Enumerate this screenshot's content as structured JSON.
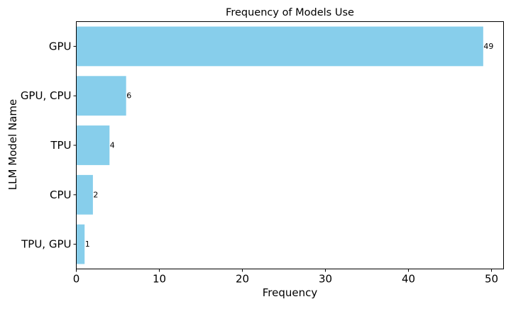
{
  "chart_data": {
    "type": "bar",
    "orientation": "horizontal",
    "title": "Frequency of Models Use",
    "xlabel": "Frequency",
    "ylabel": "LLM Model Name",
    "categories": [
      "GPU",
      "GPU, CPU",
      "TPU",
      "CPU",
      "TPU, GPU"
    ],
    "values": [
      49,
      6,
      4,
      2,
      1
    ],
    "xlim": [
      0,
      51.45
    ],
    "xticks": [
      0,
      10,
      20,
      30,
      40,
      50
    ],
    "grid": false,
    "legend": "none",
    "bar_color": "#87ceeb",
    "show_data_labels": true
  }
}
